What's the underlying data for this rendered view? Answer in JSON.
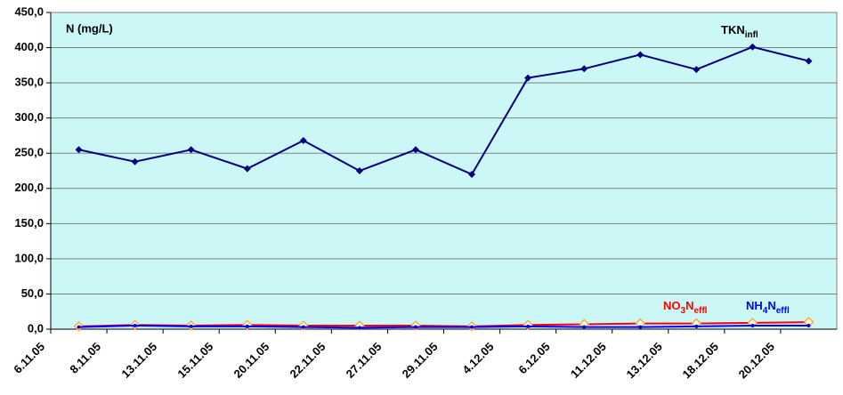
{
  "chart_data": {
    "type": "line",
    "ylabel": "N (mg/L)",
    "categories": [
      "6.11.05",
      "8.11.05",
      "13.11.05",
      "15.11.05",
      "20.11.05",
      "22.11.05",
      "27.11.05",
      "29.11.05",
      "4.12.05",
      "6.12.05",
      "11.12.05",
      "13.12.05",
      "18.12.05",
      "20.12.05"
    ],
    "series": [
      {
        "label": [
          {
            "text": "TKN"
          },
          {
            "text": "infl",
            "sub": true
          }
        ],
        "color": "#000080",
        "label_color": "#000000",
        "marker": "diamond",
        "values": [
          255,
          238,
          255,
          228,
          268,
          225,
          255,
          220,
          357,
          370,
          390,
          369,
          401,
          381
        ]
      },
      {
        "label": [
          {
            "text": "NO"
          },
          {
            "text": "3",
            "sub": true
          },
          {
            "text": "N"
          },
          {
            "text": "effl",
            "sub": true
          }
        ],
        "color": "#ff0000",
        "label_color": "#ff0000",
        "marker": "open-diamond",
        "values": [
          4,
          6,
          5,
          6,
          5,
          5,
          5,
          4,
          6,
          7,
          8,
          8,
          9,
          10
        ]
      },
      {
        "label": [
          {
            "text": "NH"
          },
          {
            "text": "4",
            "sub": true
          },
          {
            "text": "N"
          },
          {
            "text": "effl",
            "sub": true
          }
        ],
        "color": "#0000ff",
        "label_color": "#0000ff",
        "marker": "dot",
        "values": [
          3,
          5,
          4,
          4,
          3,
          2,
          3,
          3,
          4,
          3,
          3,
          4,
          5,
          5
        ]
      }
    ],
    "ylim": [
      0,
      450
    ],
    "yticks": [
      {
        "value": 0,
        "label": "0,0"
      },
      {
        "value": 50,
        "label": "50,0"
      },
      {
        "value": 100,
        "label": "100,0"
      },
      {
        "value": 150,
        "label": "150,0"
      },
      {
        "value": 200,
        "label": "200,0"
      },
      {
        "value": 250,
        "label": "250,0"
      },
      {
        "value": 300,
        "label": "300,0"
      },
      {
        "value": 350,
        "label": "350,0"
      },
      {
        "value": 400,
        "label": "400,0"
      },
      {
        "value": 450,
        "label": "450,0"
      }
    ],
    "grid": true
  }
}
